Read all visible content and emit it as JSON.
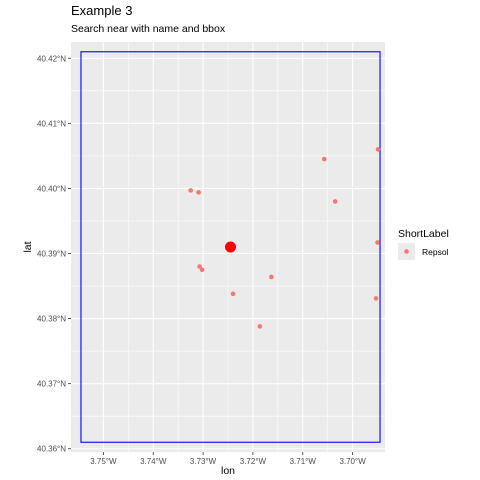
{
  "chart_data": {
    "type": "scatter",
    "title": "Example 3",
    "subtitle": "Search near with name and bbox",
    "xlabel": "lon",
    "ylabel": "lat",
    "xlim": [
      -3.7565,
      -3.6935
    ],
    "ylim": [
      40.3595,
      40.4225
    ],
    "x_ticks": [
      {
        "value": -3.75,
        "label": "3.75°W"
      },
      {
        "value": -3.74,
        "label": "3.74°W"
      },
      {
        "value": -3.73,
        "label": "3.73°W"
      },
      {
        "value": -3.72,
        "label": "3.72°W"
      },
      {
        "value": -3.71,
        "label": "3.71°W"
      },
      {
        "value": -3.7,
        "label": "3.70°W"
      }
    ],
    "y_ticks": [
      {
        "value": 40.36,
        "label": "40.36°N"
      },
      {
        "value": 40.37,
        "label": "40.37°N"
      },
      {
        "value": 40.38,
        "label": "40.38°N"
      },
      {
        "value": 40.39,
        "label": "40.39°N"
      },
      {
        "value": 40.4,
        "label": "40.40°N"
      },
      {
        "value": 40.41,
        "label": "40.41°N"
      },
      {
        "value": 40.42,
        "label": "40.42°N"
      }
    ],
    "bbox": {
      "xmin": -3.7545,
      "xmax": -3.6945,
      "ymin": 40.361,
      "ymax": 40.421,
      "color": "#0000ff"
    },
    "center_point": {
      "lon": -3.7245,
      "lat": 40.391,
      "color": "#ff0000"
    },
    "series": [
      {
        "name": "Repsol",
        "color": "#f8766d",
        "points": [
          {
            "lon": -3.7325,
            "lat": 40.3997
          },
          {
            "lon": -3.7309,
            "lat": 40.3994
          },
          {
            "lon": -3.6949,
            "lat": 40.406
          },
          {
            "lon": -3.7057,
            "lat": 40.4045
          },
          {
            "lon": -3.7035,
            "lat": 40.398
          },
          {
            "lon": -3.695,
            "lat": 40.3917
          },
          {
            "lon": -3.7307,
            "lat": 40.388
          },
          {
            "lon": -3.7302,
            "lat": 40.3875
          },
          {
            "lon": -3.7163,
            "lat": 40.3864
          },
          {
            "lon": -3.724,
            "lat": 40.3838
          },
          {
            "lon": -3.7186,
            "lat": 40.3788
          },
          {
            "lon": -3.6953,
            "lat": 40.3831
          }
        ]
      }
    ],
    "legend": {
      "title": "ShortLabel",
      "position": "right",
      "items": [
        "Repsol"
      ]
    },
    "grid": true,
    "panel_background": "#ebebeb",
    "grid_color": "#ffffff"
  }
}
